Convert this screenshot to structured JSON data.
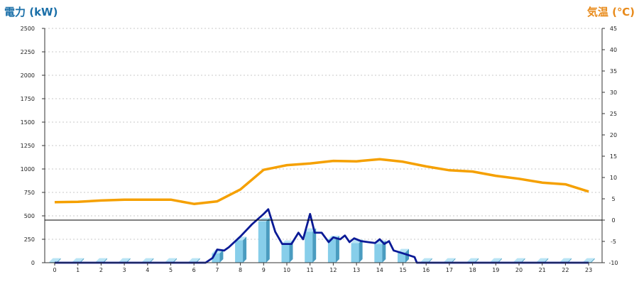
{
  "chart_data": {
    "type": "bar",
    "left_axis_title": "電力 (kW)",
    "right_axis_title": "気温 (℃)",
    "colors": {
      "left_title": "#1a6fa8",
      "right_title": "#e88a1a",
      "bar_front": "#87ceea",
      "bar_side": "#4a9cc0",
      "bar_top": "#b8e4f5",
      "power_line": "#0a1a96",
      "temp_line": "#f5a000",
      "grid": "#c8c8c8",
      "ref_line": "#000000"
    },
    "left_axis": {
      "min": 0,
      "max": 2500,
      "ticks": [
        "0",
        "250",
        "500",
        "750",
        "1000",
        "1250",
        "1500",
        "1750",
        "2000",
        "2250",
        "2500"
      ]
    },
    "right_axis": {
      "min": -10,
      "max": 45,
      "ticks": [
        "-10",
        "-5",
        "0",
        "5",
        "10",
        "15",
        "20",
        "25",
        "30",
        "35",
        "40",
        "45"
      ]
    },
    "categories": [
      "0",
      "1",
      "2",
      "3",
      "4",
      "5",
      "6",
      "7",
      "8",
      "9",
      "10",
      "11",
      "12",
      "13",
      "14",
      "15",
      "16",
      "17",
      "18",
      "19",
      "20",
      "21",
      "22",
      "23"
    ],
    "bars": [
      10,
      10,
      10,
      10,
      10,
      10,
      10,
      100,
      240,
      440,
      200,
      330,
      250,
      210,
      200,
      110,
      10,
      10,
      10,
      10,
      10,
      10,
      10,
      10
    ],
    "power_line": [
      [
        0,
        0
      ],
      [
        6.5,
        0
      ],
      [
        6.8,
        50
      ],
      [
        7.0,
        140
      ],
      [
        7.3,
        130
      ],
      [
        7.5,
        165
      ],
      [
        8,
        280
      ],
      [
        8.5,
        410
      ],
      [
        9.0,
        520
      ],
      [
        9.2,
        570
      ],
      [
        9.5,
        330
      ],
      [
        9.8,
        200
      ],
      [
        10.0,
        200
      ],
      [
        10.2,
        200
      ],
      [
        10.5,
        320
      ],
      [
        10.7,
        250
      ],
      [
        11.0,
        520
      ],
      [
        11.2,
        320
      ],
      [
        11.5,
        320
      ],
      [
        11.8,
        220
      ],
      [
        12.0,
        270
      ],
      [
        12.3,
        250
      ],
      [
        12.5,
        290
      ],
      [
        12.7,
        220
      ],
      [
        12.9,
        260
      ],
      [
        13.2,
        230
      ],
      [
        13.5,
        220
      ],
      [
        13.8,
        210
      ],
      [
        14.0,
        250
      ],
      [
        14.2,
        200
      ],
      [
        14.4,
        230
      ],
      [
        14.6,
        130
      ],
      [
        15.0,
        100
      ],
      [
        15.5,
        60
      ],
      [
        15.6,
        0
      ],
      [
        23,
        0
      ]
    ],
    "temperature": [
      4.2,
      4.3,
      4.6,
      4.8,
      4.8,
      4.8,
      3.8,
      4.4,
      7.2,
      11.8,
      12.9,
      13.3,
      13.9,
      13.8,
      14.3,
      13.7,
      12.6,
      11.7,
      11.4,
      10.4,
      9.7,
      8.8,
      8.4,
      6.7
    ],
    "reference_line": {
      "axis": "right",
      "value": 0
    },
    "grid": "horizontal-dashed"
  }
}
